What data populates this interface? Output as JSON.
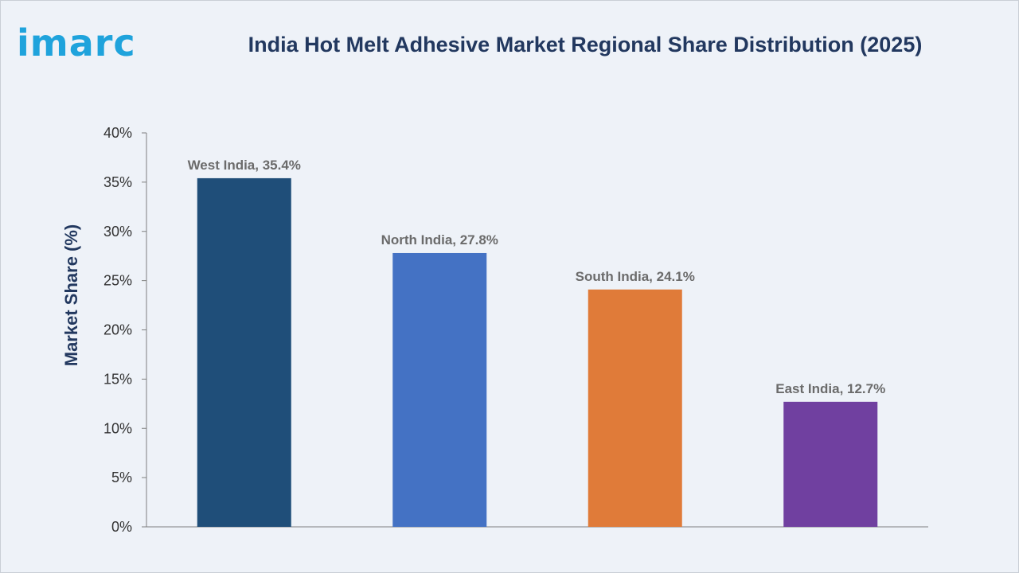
{
  "header": {
    "logo_text": "imarc",
    "title": "India Hot Melt Adhesive Market Regional Share Distribution (2025)"
  },
  "chart_data": {
    "type": "bar",
    "title": "India Hot Melt Adhesive Market Regional Share Distribution (2025)",
    "xlabel": "",
    "ylabel": "Market Share (%)",
    "ylim": [
      0,
      40
    ],
    "y_ticks": [
      0,
      5,
      10,
      15,
      20,
      25,
      30,
      35,
      40
    ],
    "y_tick_labels": [
      "0%",
      "5%",
      "10%",
      "15%",
      "20%",
      "25%",
      "30%",
      "35%",
      "40%"
    ],
    "grid": false,
    "categories": [
      "West India",
      "North India",
      "South India",
      "East India"
    ],
    "values": [
      35.4,
      27.8,
      24.1,
      12.7
    ],
    "data_labels": [
      "West India, 35.4%",
      "North India, 27.8%",
      "South India, 24.1%",
      "East India, 12.7%"
    ],
    "colors": [
      "#1f4e79",
      "#4472c4",
      "#e07b39",
      "#7040a0"
    ]
  }
}
